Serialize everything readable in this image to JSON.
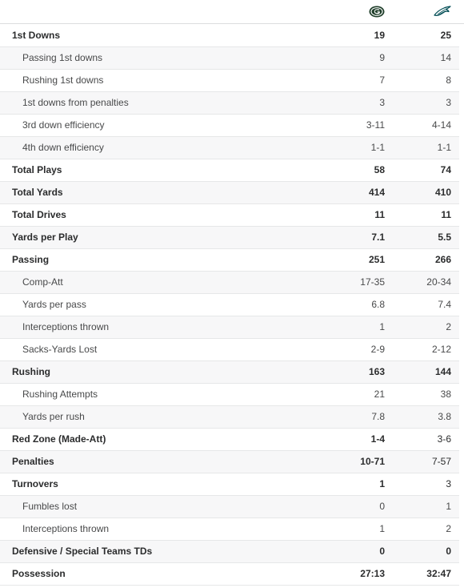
{
  "teams": {
    "home": {
      "logo_icon": "packers-logo-icon",
      "color": "#1f3e2a",
      "accent": "#f2b632"
    },
    "away": {
      "logo_icon": "eagles-logo-icon",
      "color": "#004c54"
    }
  },
  "rows": [
    {
      "label": "1st Downs",
      "home": "19",
      "away": "25",
      "level": "main"
    },
    {
      "label": "Passing 1st downs",
      "home": "9",
      "away": "14",
      "level": "sub"
    },
    {
      "label": "Rushing 1st downs",
      "home": "7",
      "away": "8",
      "level": "sub"
    },
    {
      "label": "1st downs from penalties",
      "home": "3",
      "away": "3",
      "level": "sub"
    },
    {
      "label": "3rd down efficiency",
      "home": "3-11",
      "away": "4-14",
      "level": "sub"
    },
    {
      "label": "4th down efficiency",
      "home": "1-1",
      "away": "1-1",
      "level": "sub"
    },
    {
      "label": "Total Plays",
      "home": "58",
      "away": "74",
      "level": "main"
    },
    {
      "label": "Total Yards",
      "home": "414",
      "away": "410",
      "level": "main"
    },
    {
      "label": "Total Drives",
      "home": "11",
      "away": "11",
      "level": "main"
    },
    {
      "label": "Yards per Play",
      "home": "7.1",
      "away": "5.5",
      "level": "main"
    },
    {
      "label": "Passing",
      "home": "251",
      "away": "266",
      "level": "main"
    },
    {
      "label": "Comp-Att",
      "home": "17-35",
      "away": "20-34",
      "level": "sub"
    },
    {
      "label": "Yards per pass",
      "home": "6.8",
      "away": "7.4",
      "level": "sub"
    },
    {
      "label": "Interceptions thrown",
      "home": "1",
      "away": "2",
      "level": "sub"
    },
    {
      "label": "Sacks-Yards Lost",
      "home": "2-9",
      "away": "2-12",
      "level": "sub"
    },
    {
      "label": "Rushing",
      "home": "163",
      "away": "144",
      "level": "main"
    },
    {
      "label": "Rushing Attempts",
      "home": "21",
      "away": "38",
      "level": "sub"
    },
    {
      "label": "Yards per rush",
      "home": "7.8",
      "away": "3.8",
      "level": "sub"
    },
    {
      "label": "Red Zone (Made-Att)",
      "home": "1-4",
      "away": "3-6",
      "level": "main",
      "home_bold": true,
      "away_bold": false
    },
    {
      "label": "Penalties",
      "home": "10-71",
      "away": "7-57",
      "level": "main",
      "home_bold": true,
      "away_bold": false
    },
    {
      "label": "Turnovers",
      "home": "1",
      "away": "3",
      "level": "main",
      "home_bold": true,
      "away_bold": false
    },
    {
      "label": "Fumbles lost",
      "home": "0",
      "away": "1",
      "level": "sub"
    },
    {
      "label": "Interceptions thrown",
      "home": "1",
      "away": "2",
      "level": "sub"
    },
    {
      "label": "Defensive / Special Teams TDs",
      "home": "0",
      "away": "0",
      "level": "main"
    },
    {
      "label": "Possession",
      "home": "27:13",
      "away": "32:47",
      "level": "main"
    }
  ]
}
